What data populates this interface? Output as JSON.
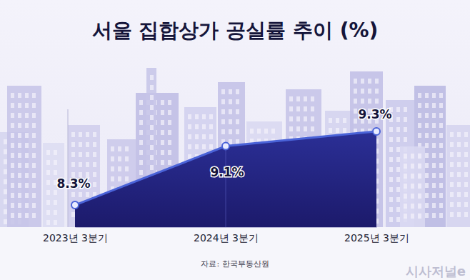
{
  "chart_data": {
    "type": "area",
    "title": "서울 집합상가 공실률 추이 (%)",
    "categories": [
      "2023년 3분기",
      "2024년 3분기",
      "2025년 3분기"
    ],
    "values": [
      8.3,
      9.1,
      9.3
    ],
    "value_labels": [
      "8.3%",
      "9.1%",
      "9.3%"
    ],
    "color": "#1c1a6b",
    "ylim": [
      8,
      9.6
    ],
    "data_labels": true,
    "tick_labels": "x",
    "grid": false,
    "source": "자료: 한국부동산원",
    "watermark": "시사저널e"
  }
}
